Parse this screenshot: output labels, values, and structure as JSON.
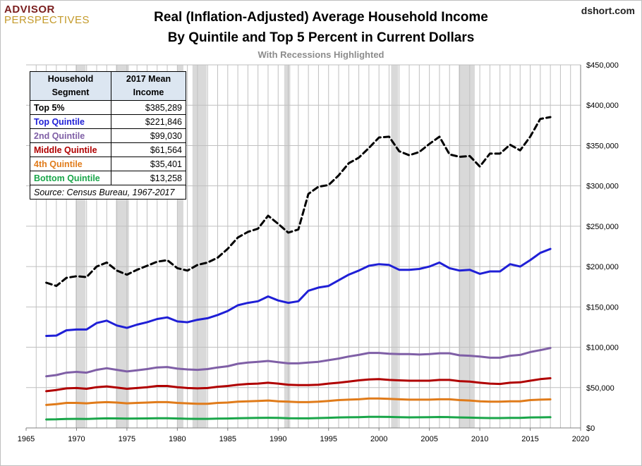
{
  "header": {
    "logo_top": "ADVISOR",
    "logo_bottom": "PERSPECTIVES",
    "site": "dshort.com",
    "title_line1": "Real (Inflation-Adjusted) Average Household Income",
    "title_line2": "By Quintile and Top 5 Percent in Current Dollars",
    "subtitle": "With Recessions Highlighted"
  },
  "legend": {
    "col1": "Household Segment",
    "col2": "2017 Mean Income",
    "rows": [
      {
        "name": "Top 5%",
        "value": "$385,289",
        "color": "#000000"
      },
      {
        "name": "Top Quintile",
        "value": "$221,846",
        "color": "#1f1fd6"
      },
      {
        "name": "2nd Quintile",
        "value": "$99,030",
        "color": "#7f5fa6"
      },
      {
        "name": "Middle Quintile",
        "value": "$61,564",
        "color": "#b00000"
      },
      {
        "name": "4th Quintile",
        "value": "$35,401",
        "color": "#e07b1a"
      },
      {
        "name": "Bottom Quintile",
        "value": "$13,258",
        "color": "#1aa64a"
      }
    ],
    "source": "Source: Census Bureau, 1967-2017"
  },
  "chart_data": {
    "type": "line",
    "title": "Real (Inflation-Adjusted) Average Household Income By Quintile and Top 5 Percent in Current Dollars",
    "subtitle": "With Recessions Highlighted",
    "x_ticks": [
      "1965",
      "1970",
      "1975",
      "1980",
      "1985",
      "1990",
      "1995",
      "2000",
      "2005",
      "2010",
      "2015",
      "2020"
    ],
    "y_ticks": [
      "$0",
      "$50,000",
      "$100,000",
      "$150,000",
      "$200,000",
      "$250,000",
      "$300,000",
      "$350,000",
      "$400,000",
      "$450,000"
    ],
    "xlim": [
      1965,
      2020
    ],
    "ylim": [
      0,
      450000
    ],
    "grid": "vertical yearly, horizontal at ticks",
    "y_axis_side": "right",
    "recessions": [
      [
        1969.9,
        1970.9
      ],
      [
        1973.9,
        1975.2
      ],
      [
        1980.0,
        1980.6
      ],
      [
        1981.5,
        1982.9
      ],
      [
        1990.6,
        1991.2
      ],
      [
        2001.2,
        2001.9
      ],
      [
        2007.9,
        2009.5
      ]
    ],
    "x": [
      1967,
      1968,
      1969,
      1970,
      1971,
      1972,
      1973,
      1974,
      1975,
      1976,
      1977,
      1978,
      1979,
      1980,
      1981,
      1982,
      1983,
      1984,
      1985,
      1986,
      1987,
      1988,
      1989,
      1990,
      1991,
      1992,
      1993,
      1994,
      1995,
      1996,
      1997,
      1998,
      1999,
      2000,
      2001,
      2002,
      2003,
      2004,
      2005,
      2006,
      2007,
      2008,
      2009,
      2010,
      2011,
      2012,
      2013,
      2014,
      2015,
      2016,
      2017
    ],
    "series": [
      {
        "name": "Top 5%",
        "color": "#000000",
        "dashed": true,
        "values": [
          180000,
          176000,
          186000,
          188000,
          187000,
          200000,
          205000,
          195000,
          190000,
          196000,
          201000,
          206000,
          208000,
          198000,
          195000,
          202000,
          205000,
          211000,
          222000,
          236000,
          243000,
          247000,
          263000,
          253000,
          242000,
          246000,
          290000,
          299000,
          301000,
          313000,
          328000,
          335000,
          347000,
          360000,
          361000,
          343000,
          338000,
          342000,
          352000,
          361000,
          339000,
          336000,
          337000,
          324000,
          340000,
          340000,
          351000,
          344000,
          361000,
          383000,
          385289
        ]
      },
      {
        "name": "Top Quintile",
        "color": "#1f1fd6",
        "dashed": false,
        "values": [
          114000,
          114500,
          121000,
          122000,
          122000,
          130000,
          133000,
          127000,
          124000,
          128000,
          131000,
          135000,
          137000,
          132000,
          131000,
          134000,
          136000,
          140000,
          145000,
          152000,
          155000,
          157000,
          163000,
          158000,
          155000,
          157000,
          170000,
          174000,
          176000,
          183000,
          190000,
          195000,
          201000,
          203000,
          202000,
          196000,
          196000,
          197000,
          200000,
          205000,
          198000,
          195000,
          196000,
          191000,
          194000,
          194000,
          203000,
          200000,
          208000,
          217000,
          221846
        ]
      },
      {
        "name": "2nd Quintile",
        "color": "#7f5fa6",
        "dashed": false,
        "values": [
          64000,
          65500,
          68500,
          69500,
          68500,
          72000,
          74000,
          72000,
          70000,
          71500,
          73000,
          75000,
          75500,
          73500,
          72500,
          72000,
          73000,
          75000,
          76500,
          79500,
          81000,
          82000,
          83000,
          81500,
          80000,
          80000,
          81000,
          82000,
          84000,
          86000,
          88500,
          90500,
          93000,
          93000,
          92000,
          91500,
          91500,
          91000,
          91500,
          92500,
          92500,
          90000,
          89500,
          88500,
          87000,
          87000,
          89500,
          90500,
          94000,
          96500,
          99030
        ]
      },
      {
        "name": "Middle Quintile",
        "color": "#b00000",
        "dashed": false,
        "values": [
          45500,
          47000,
          49000,
          49500,
          48500,
          50500,
          51500,
          50000,
          48500,
          49500,
          50500,
          52000,
          52000,
          50500,
          49500,
          49000,
          49500,
          51000,
          52000,
          53500,
          54500,
          55000,
          56000,
          55000,
          53500,
          53000,
          53000,
          53500,
          55000,
          56000,
          57500,
          59000,
          60000,
          60500,
          59500,
          59000,
          58500,
          58500,
          58500,
          59500,
          59500,
          58000,
          57500,
          56000,
          55000,
          54500,
          56000,
          56500,
          58500,
          60500,
          61564
        ]
      },
      {
        "name": "4th Quintile",
        "color": "#e07b1a",
        "dashed": false,
        "values": [
          28500,
          29500,
          31000,
          31000,
          30500,
          31500,
          32000,
          31500,
          30500,
          31000,
          31500,
          32000,
          32000,
          31000,
          30500,
          30000,
          30000,
          31000,
          31500,
          32500,
          33000,
          33500,
          34000,
          33000,
          32500,
          32000,
          32000,
          32500,
          33500,
          34500,
          35000,
          35500,
          36500,
          36500,
          36000,
          35500,
          35000,
          35000,
          35000,
          35500,
          35500,
          34500,
          34000,
          33000,
          32500,
          32500,
          33000,
          33000,
          34500,
          35000,
          35401
        ]
      },
      {
        "name": "Bottom Quintile",
        "color": "#1aa64a",
        "dashed": false,
        "values": [
          10500,
          10700,
          11200,
          11300,
          11100,
          11600,
          11900,
          11800,
          11500,
          11700,
          11800,
          12000,
          12000,
          11700,
          11400,
          11300,
          11300,
          11500,
          11700,
          12000,
          12200,
          12400,
          12600,
          12400,
          12000,
          11900,
          11900,
          12200,
          12600,
          13000,
          13200,
          13400,
          13700,
          13800,
          13600,
          13300,
          13100,
          13200,
          13300,
          13500,
          13400,
          13000,
          12800,
          12400,
          12200,
          12200,
          12400,
          12500,
          13000,
          13100,
          13258
        ]
      }
    ]
  }
}
